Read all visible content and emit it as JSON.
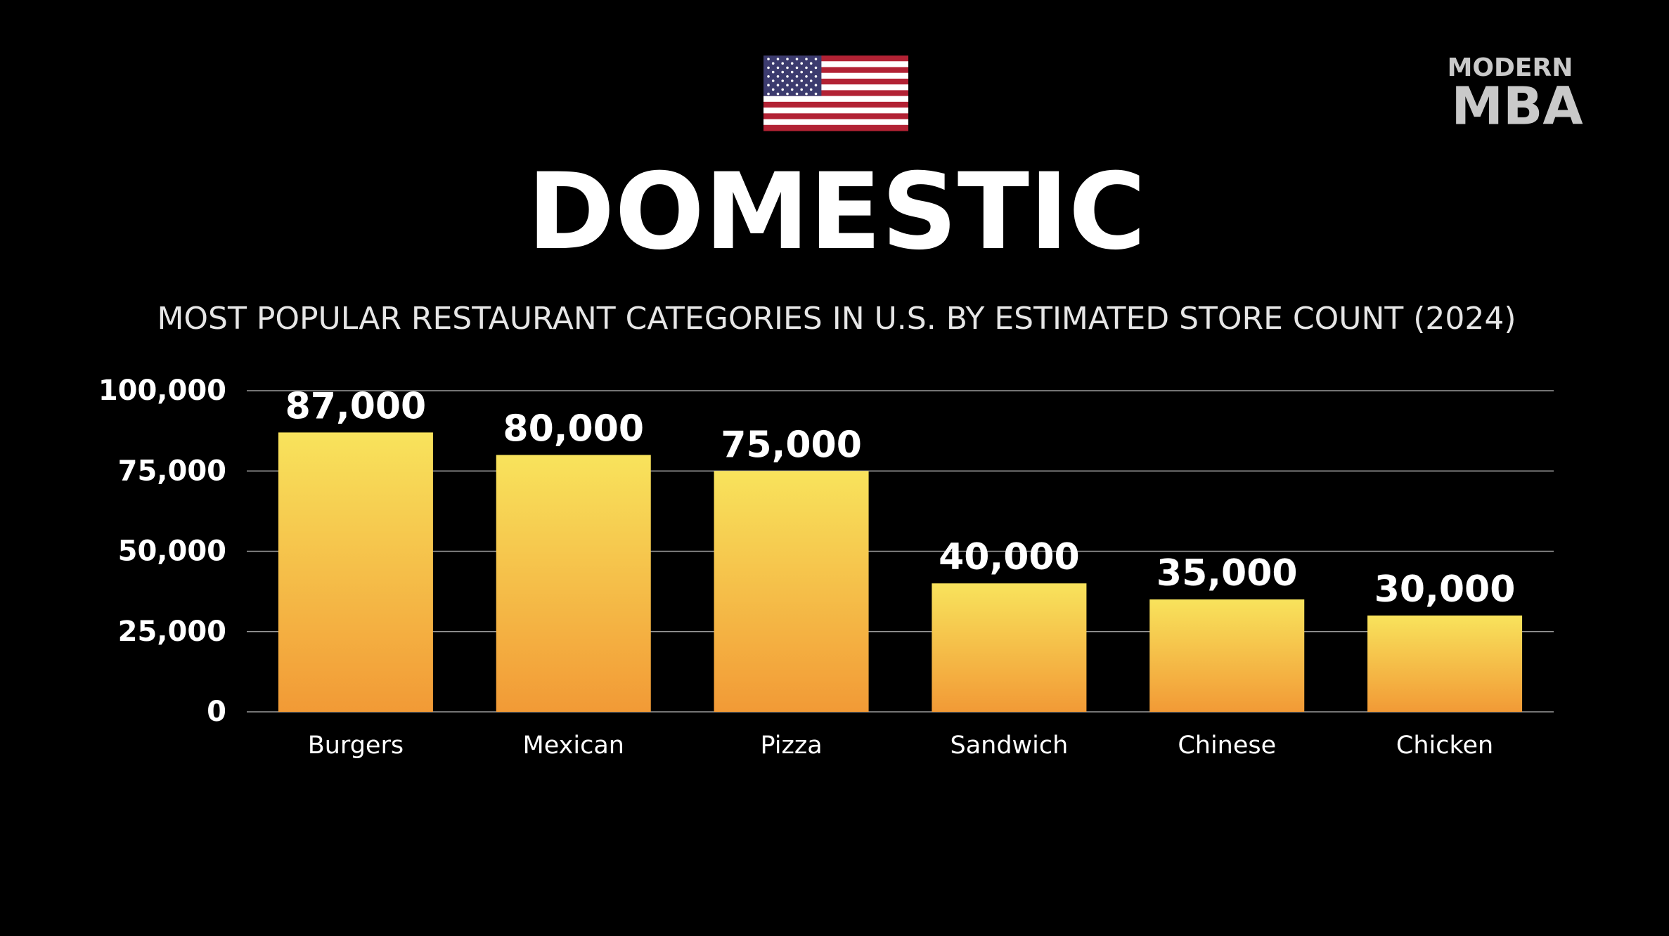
{
  "chart_data": {
    "type": "bar",
    "brand": [
      "MODERN",
      "MBA"
    ],
    "title": "DOMESTIC",
    "subtitle": "MOST POPULAR RESTAURANT CATEGORIES IN U.S. BY ESTIMATED STORE COUNT (2024)",
    "categories": [
      "Burgers",
      "Mexican",
      "Pizza",
      "Sandwich",
      "Chinese",
      "Chicken"
    ],
    "values": [
      87000,
      80000,
      75000,
      40000,
      35000,
      30000
    ],
    "value_labels": [
      "87,000",
      "80,000",
      "75,000",
      "40,000",
      "35,000",
      "30,000"
    ],
    "colors": [
      "#f8e35c",
      "#f29a36"
    ],
    "ylim": [
      0,
      100000
    ],
    "yticks": [
      0,
      {
        "value": 25000,
        "label": "25,000"
      },
      {
        "value": 50000,
        "label": "50,000"
      },
      {
        "value": 75000,
        "label": "75,000"
      },
      {
        "value": 100000,
        "label": "100,000"
      }
    ],
    "grid": true
  }
}
